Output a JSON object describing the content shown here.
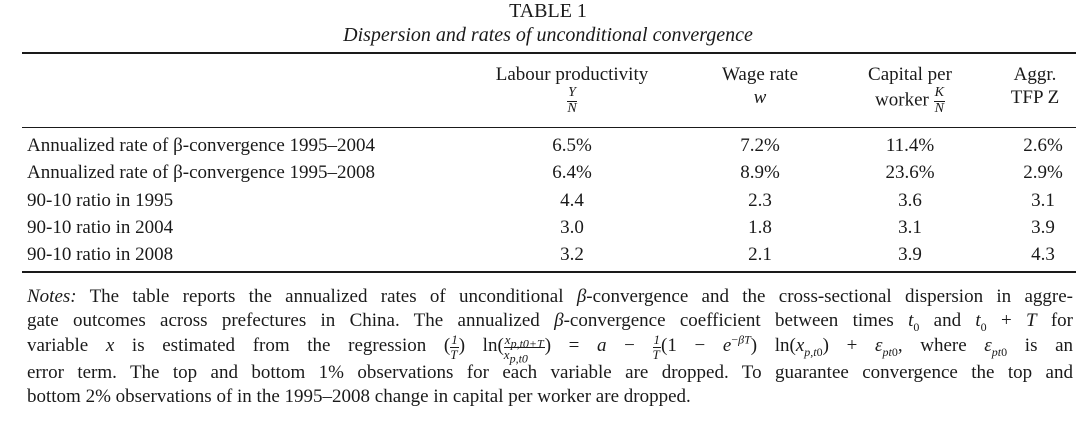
{
  "table": {
    "label": "TABLE 1",
    "title": "Dispersion and rates of unconditional convergence",
    "columns": [
      {
        "lines": [
          "Labour productivity",
          ""
        ],
        "math_num": "Y",
        "math_den": "N"
      },
      {
        "lines": [
          "Wage rate",
          "w"
        ]
      },
      {
        "lines": [
          "Capital per",
          "worker"
        ],
        "math_num": "K",
        "math_den": "N"
      },
      {
        "lines": [
          "Aggr.",
          "TFP Z"
        ]
      }
    ],
    "rows": [
      {
        "label": "Annualized rate of β-convergence 1995–2004",
        "values": [
          "6.5%",
          "7.2%",
          "11.4%",
          "2.6%"
        ]
      },
      {
        "label": "Annualized rate of β-convergence 1995–2008",
        "values": [
          "6.4%",
          "8.9%",
          "23.6%",
          "2.9%"
        ]
      },
      {
        "label": "90-10 ratio in 1995",
        "values": [
          "4.4",
          "2.3",
          "3.6",
          "3.1"
        ]
      },
      {
        "label": "90-10 ratio in 2004",
        "values": [
          "3.0",
          "1.8",
          "3.1",
          "3.9"
        ]
      },
      {
        "label": "90-10 ratio in 2008",
        "values": [
          "3.2",
          "2.1",
          "3.9",
          "4.3"
        ]
      }
    ]
  },
  "notes": {
    "label": "Notes:",
    "line1": "The table reports the annualized rates of unconditional β-convergence and the cross-sectional dispersion in aggre-",
    "line2": "gate outcomes across prefectures in China. The annualized β-convergence coefficient between times t0 and t0 + T for",
    "line3": "variable x is estimated from the regression (1/T) ln(x_{p,t0+T}/x_{p,t0}) = a − (1/T)(1 − e^{−βT}) ln(x_{p,t0}) + ε_{pt0}, where ε_{pt0} is an",
    "line4": "error term. The top and bottom 1% observations for each variable are dropped. To guarantee convergence the top and",
    "line5": "bottom 2% observations of in the 1995–2008 change in capital per worker are dropped."
  }
}
